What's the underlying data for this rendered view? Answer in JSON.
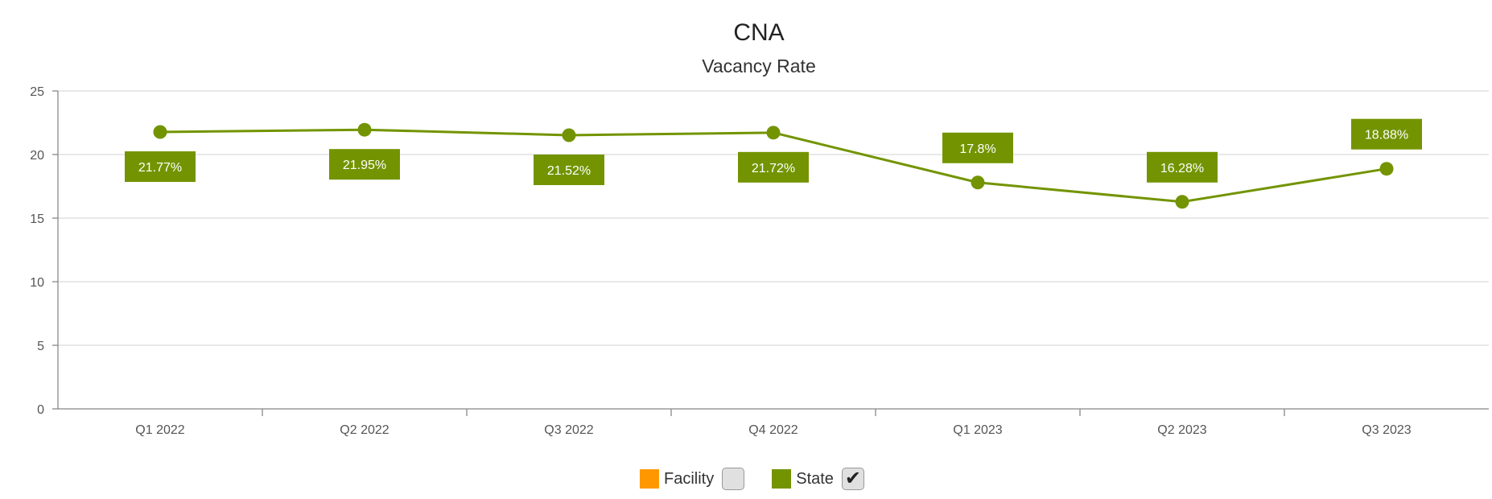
{
  "chart_data": {
    "type": "line",
    "title": "CNA",
    "subtitle": "Vacancy Rate",
    "xlabel": "",
    "ylabel": "",
    "categories": [
      "Q1 2022",
      "Q2 2022",
      "Q3 2022",
      "Q4 2022",
      "Q1 2023",
      "Q2 2023",
      "Q3 2023"
    ],
    "y_ticks": [
      "0",
      "5",
      "10",
      "15",
      "20",
      "25"
    ],
    "ylim": [
      0,
      25
    ],
    "grid": true,
    "legend_position": "bottom-center",
    "series": [
      {
        "name": "State",
        "color": "#739400",
        "values": [
          21.77,
          21.95,
          21.52,
          21.72,
          17.8,
          16.28,
          18.88
        ],
        "labels": [
          "21.77%",
          "21.95%",
          "21.52%",
          "21.72%",
          "17.8%",
          "16.28%",
          "18.88%"
        ]
      }
    ]
  },
  "legend": [
    {
      "label": "Facility",
      "color": "#ff9800",
      "checked": false,
      "check_glyph": ""
    },
    {
      "label": "State",
      "color": "#739400",
      "checked": true,
      "check_glyph": "✔"
    }
  ]
}
